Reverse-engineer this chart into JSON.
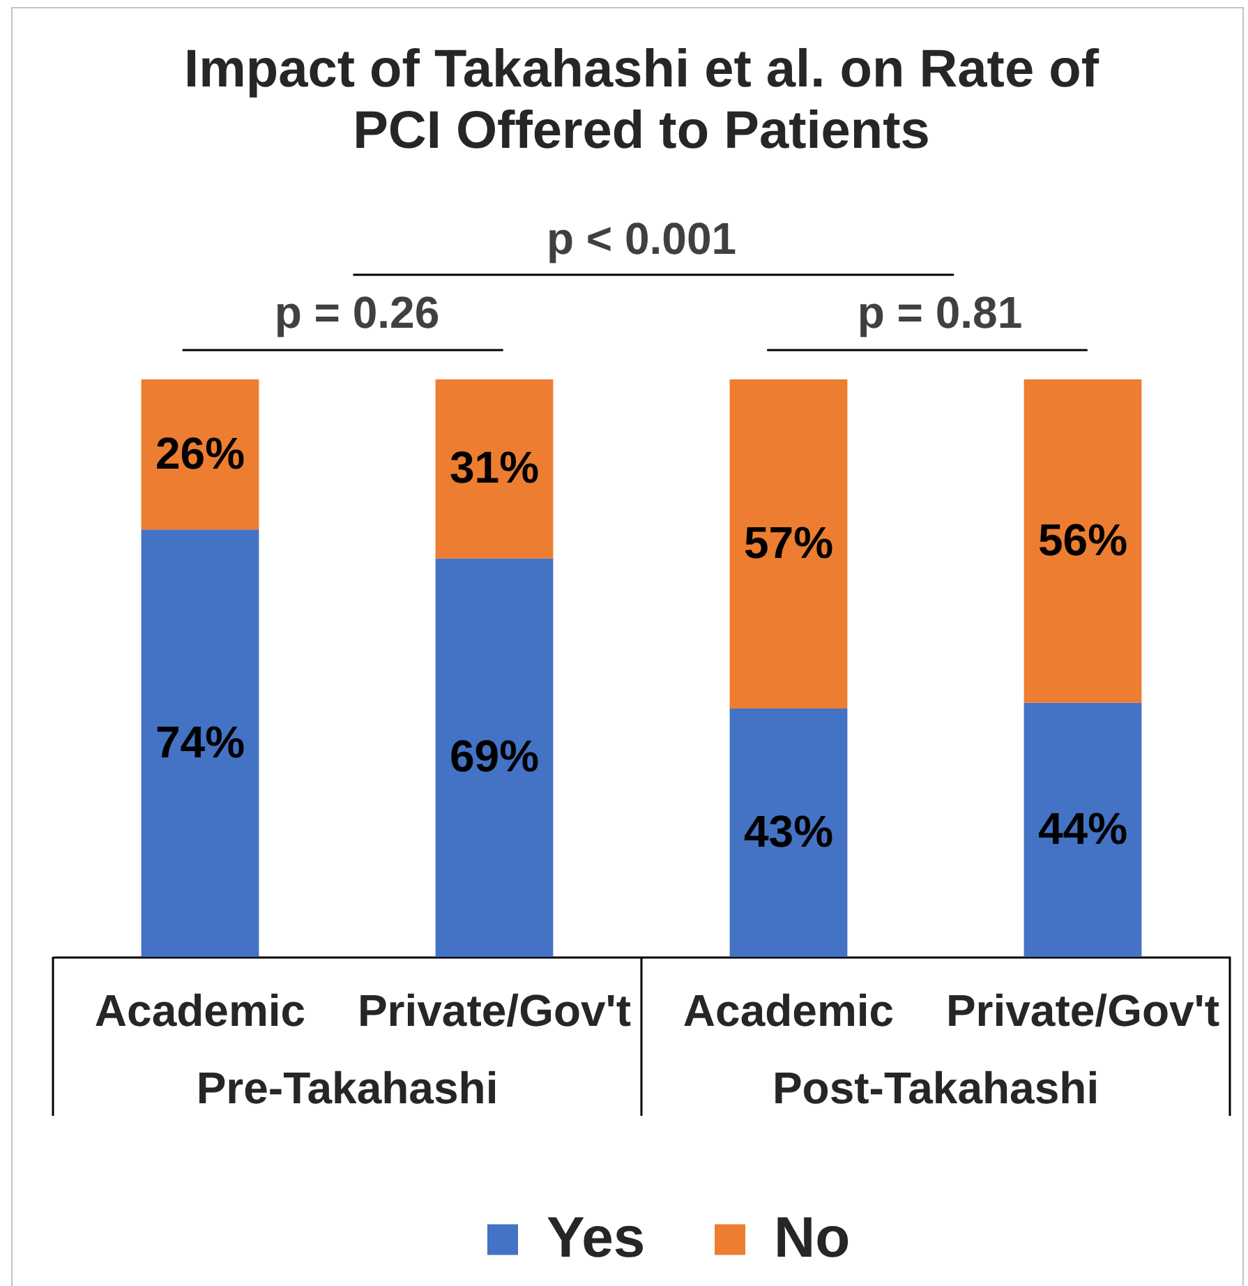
{
  "chart_data": {
    "type": "bar",
    "title": "Impact of Takahashi et al. on Rate of PCI Offered to Patients",
    "categories": [
      "Academic",
      "Private/Gov't",
      "Academic",
      "Private/Gov't"
    ],
    "series": [
      {
        "name": "Yes",
        "color": "#4472c4",
        "values": [
          74,
          69,
          43,
          44
        ],
        "value_labels": [
          "74%",
          "69%",
          "43%",
          "44%"
        ]
      },
      {
        "name": "No",
        "color": "#ed7d31",
        "values": [
          26,
          31,
          57,
          56
        ],
        "value_labels": [
          "26%",
          "31%",
          "57%",
          "56%"
        ]
      }
    ],
    "stacked": true,
    "legend": "bottom",
    "annotations": [
      "p < 0.001",
      "p = 0.26",
      "p = 0.81",
      "Pre-Takahashi",
      "Post-Takahashi"
    ]
  }
}
